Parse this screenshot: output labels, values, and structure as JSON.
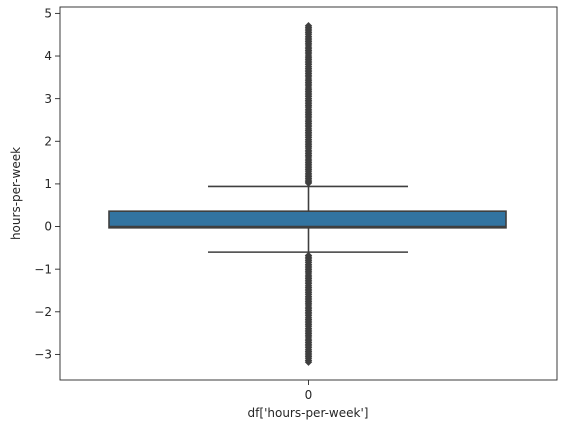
{
  "chart_data": {
    "type": "box",
    "categories": [
      "0"
    ],
    "xlabel": "df['hours-per-week']",
    "ylabel": "hours-per-week",
    "ylim": [
      -3.6,
      5.15
    ],
    "yticks": [
      -3,
      -2,
      -1,
      0,
      1,
      2,
      3,
      4,
      5
    ],
    "ytick_labels": [
      "−3",
      "−2",
      "−1",
      "0",
      "1",
      "2",
      "3",
      "4",
      "5"
    ],
    "grid": false,
    "box": {
      "q1": -0.03,
      "median": 0.0,
      "q3": 0.36,
      "whisker_low": -0.6,
      "whisker_high": 0.94,
      "fill_color": "#3274a1",
      "line_color": "#3f3f3f"
    },
    "outliers_high": [
      1.02,
      1.05,
      1.09,
      1.13,
      1.17,
      1.21,
      1.25,
      1.3,
      1.34,
      1.38,
      1.42,
      1.46,
      1.5,
      1.54,
      1.58,
      1.63,
      1.67,
      1.71,
      1.75,
      1.79,
      1.84,
      1.88,
      1.92,
      1.96,
      2.0,
      2.04,
      2.09,
      2.13,
      2.17,
      2.21,
      2.25,
      2.29,
      2.34,
      2.38,
      2.42,
      2.46,
      2.5,
      2.55,
      2.59,
      2.63,
      2.67,
      2.71,
      2.75,
      2.8,
      2.84,
      2.88,
      2.92,
      2.96,
      3.0,
      3.05,
      3.09,
      3.13,
      3.17,
      3.21,
      3.25,
      3.3,
      3.34,
      3.38,
      3.42,
      3.46,
      3.51,
      3.55,
      3.59,
      3.63,
      3.67,
      3.71,
      3.75,
      3.8,
      3.84,
      3.88,
      3.92,
      3.96,
      4.0,
      4.05,
      4.09,
      4.13,
      4.17,
      4.21,
      4.26,
      4.3,
      4.34,
      4.38,
      4.42,
      4.46,
      4.51,
      4.55,
      4.59,
      4.63,
      4.67,
      4.71
    ],
    "outliers_low": [
      -0.68,
      -0.72,
      -0.76,
      -0.8,
      -0.84,
      -0.89,
      -0.93,
      -0.97,
      -1.01,
      -1.05,
      -1.09,
      -1.14,
      -1.18,
      -1.22,
      -1.26,
      -1.3,
      -1.34,
      -1.39,
      -1.43,
      -1.47,
      -1.51,
      -1.55,
      -1.59,
      -1.64,
      -1.68,
      -1.72,
      -1.76,
      -1.8,
      -1.84,
      -1.89,
      -1.93,
      -1.97,
      -2.01,
      -2.05,
      -2.09,
      -2.14,
      -2.18,
      -2.22,
      -2.26,
      -2.3,
      -2.34,
      -2.39,
      -2.43,
      -2.47,
      -2.51,
      -2.55,
      -2.59,
      -2.64,
      -2.68,
      -2.72,
      -2.76,
      -2.8,
      -2.84,
      -2.89,
      -2.93,
      -2.97,
      -3.01,
      -3.05,
      -3.09,
      -3.14,
      -3.18
    ]
  }
}
